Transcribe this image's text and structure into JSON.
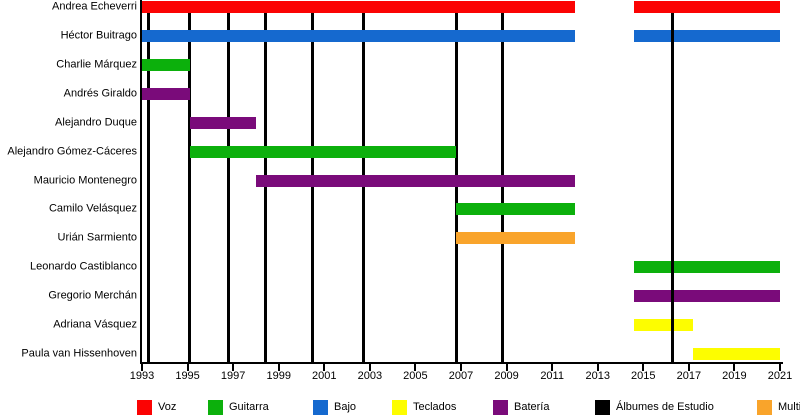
{
  "chart_data": {
    "type": "timeline",
    "title": "",
    "x_axis": {
      "min": 1993,
      "max": 2021,
      "tick_step": 2,
      "tick_labels": [
        "1993",
        "1995",
        "1997",
        "1999",
        "2001",
        "2003",
        "2005",
        "2007",
        "2009",
        "2011",
        "2013",
        "2015",
        "2017",
        "2019",
        "2021"
      ]
    },
    "role_colors": {
      "Voz": "#fb0303",
      "Guitarra": "#0cb00c",
      "Bajo": "#1569cf",
      "Teclados": "#fdfd00",
      "Batería": "#7a0b7a",
      "Álbumes de Estudio": "#000000",
      "Multi": "#f9a42b"
    },
    "members": [
      {
        "name": "Andrea Echeverri",
        "role": "Voz",
        "spans": [
          [
            1993,
            2012
          ],
          [
            2014.6,
            2021
          ]
        ]
      },
      {
        "name": "Héctor Buitrago",
        "role": "Bajo",
        "spans": [
          [
            1993,
            2012
          ],
          [
            2014.6,
            2021
          ]
        ]
      },
      {
        "name": "Charlie Márquez",
        "role": "Guitarra",
        "spans": [
          [
            1993,
            1995.1
          ]
        ]
      },
      {
        "name": "Andrés Giraldo",
        "role": "Batería",
        "spans": [
          [
            1993,
            1995.1
          ]
        ]
      },
      {
        "name": "Alejandro Duque",
        "role": "Batería",
        "spans": [
          [
            1995.1,
            1998
          ]
        ]
      },
      {
        "name": "Alejandro Gómez-Cáceres",
        "role": "Guitarra",
        "spans": [
          [
            1995.1,
            2006.8
          ]
        ]
      },
      {
        "name": "Mauricio Montenegro",
        "role": "Batería",
        "spans": [
          [
            1998,
            2012
          ]
        ]
      },
      {
        "name": "Camilo Velásquez",
        "role": "Guitarra",
        "spans": [
          [
            2006.8,
            2012
          ]
        ]
      },
      {
        "name": "Urián Sarmiento",
        "role": "Multi",
        "spans": [
          [
            2006.8,
            2012
          ]
        ]
      },
      {
        "name": "Leonardo Castiblanco",
        "role": "Guitarra",
        "spans": [
          [
            2014.6,
            2021
          ]
        ]
      },
      {
        "name": "Gregorio Merchán",
        "role": "Batería",
        "spans": [
          [
            2014.6,
            2021
          ]
        ]
      },
      {
        "name": "Adriana Vásquez",
        "role": "Teclados",
        "spans": [
          [
            2014.6,
            2017.2
          ]
        ]
      },
      {
        "name": "Paula van Hissenhoven",
        "role": "Teclados",
        "spans": [
          [
            2017.2,
            2021
          ]
        ]
      }
    ],
    "album_markers": [
      1993.3,
      1995.1,
      1996.8,
      1998.4,
      2000.5,
      2002.7,
      2006.8,
      2008.8,
      2016.3
    ],
    "legend": [
      {
        "label": "Voz",
        "color": "#fb0303"
      },
      {
        "label": "Guitarra",
        "color": "#0cb00c"
      },
      {
        "label": "Bajo",
        "color": "#1569cf"
      },
      {
        "label": "Teclados",
        "color": "#fdfd00"
      },
      {
        "label": "Batería",
        "color": "#7a0b7a"
      },
      {
        "label": "Álbumes de Estudio",
        "color": "#000000"
      },
      {
        "label": "Multi",
        "color": "#f9a42b"
      }
    ]
  }
}
